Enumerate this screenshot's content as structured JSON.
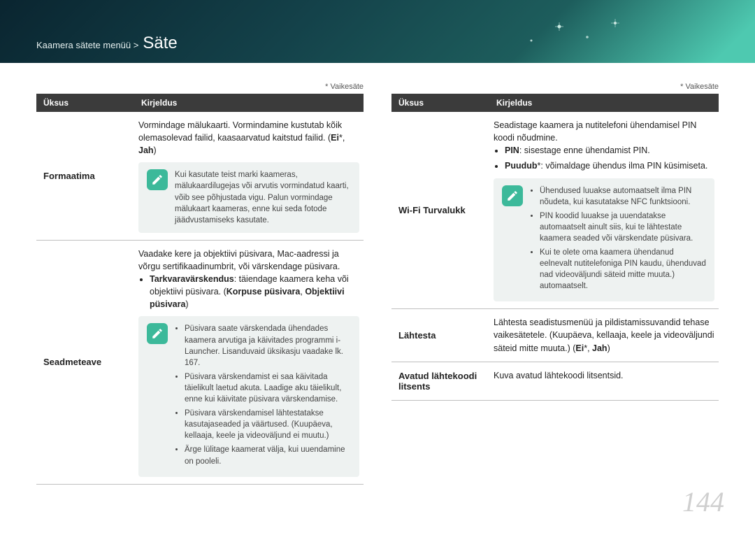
{
  "header": {
    "breadcrumb_prefix": "Kaamera sätete menüü >",
    "breadcrumb_main": "Säte"
  },
  "default_label": "* Vaikesäte",
  "table_head": {
    "col1": "Üksus",
    "col2": "Kirjeldus"
  },
  "left": {
    "rows": [
      {
        "item": "Formaatima",
        "desc_html": "Vormindage mälukaarti. Vormindamine kustutab kõik olemasolevad failid, kaasaarvatud kaitstud failid. (<b>Ei</b>*, <b>Jah</b>)",
        "note_html": "Kui kasutate teist marki kaameras, mälukaardilugejas või arvutis vormindatud kaarti, võib see põhjustada vigu. Palun vormindage mälukaart kaameras, enne kui seda fotode jäädvustamiseks kasutate."
      },
      {
        "item": "Seadmeteave",
        "desc_html": "Vaadake kere ja objektiivi püsivara, Mac-aadressi ja võrgu sertifikaadinumbrit, või värskendage püsivara.<ul class='outer'><li><b>Tarkvaravärskendus</b>: täiendage kaamera keha või objektiivi püsivara. (<b>Korpuse püsivara</b>, <b>Objektiivi püsivara</b>)</li></ul>",
        "note_html": "<ul><li>Püsivara saate värskendada ühendades kaamera arvutiga ja käivitades programmi i-Launcher. Lisanduvaid üksikasju vaadake lk. 167.</li><li>Püsivara värskendamist ei saa käivitada täielikult laetud akuta. Laadige aku täielikult, enne kui käivitate püsivara värskendamise.</li><li>Püsivara värskendamisel lähtestatakse kasutajaseaded ja väärtused. (Kuupäeva, kellaaja, keele ja videoväljund ei muutu.)</li><li>Ärge lülitage kaamerat välja, kui uuendamine on pooleli.</li></ul>"
      }
    ]
  },
  "right": {
    "rows": [
      {
        "item": "Wi-Fi Turvalukk",
        "desc_html": "Seadistage kaamera ja nutitelefoni ühendamisel PIN koodi nõudmine.<ul class='outer'><li><b>PIN</b>: sisestage enne ühendamist PIN.</li><li><b>Puudub</b>*: võimaldage ühendus ilma PIN küsimiseta.</li></ul>",
        "note_html": "<ul><li>Ühendused luuakse automaatselt ilma PIN nõudeta, kui kasutatakse NFC funktsiooni.</li><li>PIN koodid luuakse ja uuendatakse automaatselt ainult siis, kui te lähtestate kaamera seaded või värskendate püsivara.</li><li>Kui te olete oma kaamera ühendanud eelnevalt nutitelefoniga PIN kaudu, ühenduvad nad videoväljundi säteid mitte muuta.) automaatselt.</li></ul>"
      },
      {
        "item": "Lähtesta",
        "desc_html": "Lähtesta seadistusmenüü ja pildistamissuvandid tehase vaikesätetele. (Kuupäeva, kellaaja, keele ja videoväljundi säteid mitte muuta.) (<b>Ei</b>*, <b>Jah</b>)"
      },
      {
        "item": "Avatud lähtekoodi litsents",
        "desc_html": "Kuva avatud lähtekoodi litsentsid."
      }
    ]
  },
  "page_number": "144",
  "colors": {
    "accent": "#3cb99a",
    "header_dark": "#0a2530",
    "table_head_bg": "#3b3b3b",
    "note_bg": "#eef2f1",
    "page_num": "#cfcfcf"
  }
}
